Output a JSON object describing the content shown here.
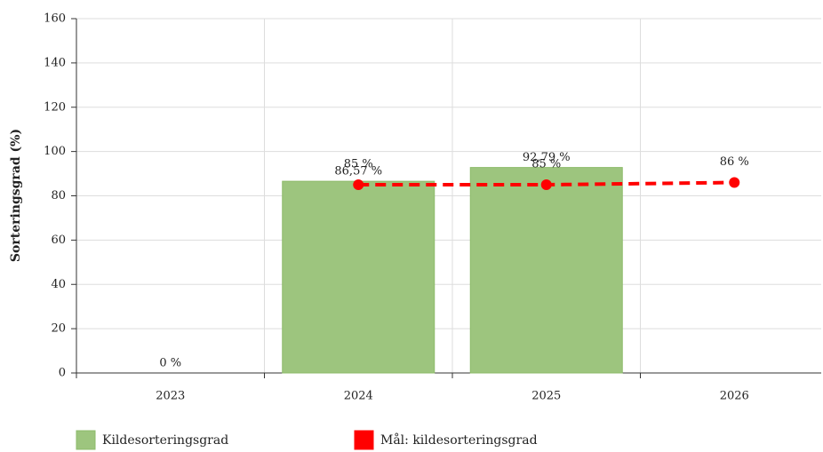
{
  "chart_data": {
    "type": "bar",
    "y_label": "Sorteringsgrad (%)",
    "categories": [
      "2023",
      "2024",
      "2025",
      "2026"
    ],
    "series": [
      {
        "name": "Kildesorteringsgrad",
        "type": "bar",
        "color": "#9dc57e",
        "values": [
          0,
          86.57,
          92.79,
          null
        ],
        "value_labels": [
          "0 %",
          "86,57 %",
          "92,79 %",
          null
        ]
      },
      {
        "name": "Mål: kildesorteringsgrad",
        "type": "line",
        "color": "#ff0000",
        "values": [
          null,
          85,
          85,
          86
        ],
        "value_labels": [
          null,
          "85 %",
          "85 %",
          "86 %"
        ]
      }
    ],
    "ylim": [
      0,
      160
    ],
    "yticks": [
      0,
      20,
      40,
      60,
      80,
      100,
      120,
      140,
      160
    ],
    "grid": true
  }
}
